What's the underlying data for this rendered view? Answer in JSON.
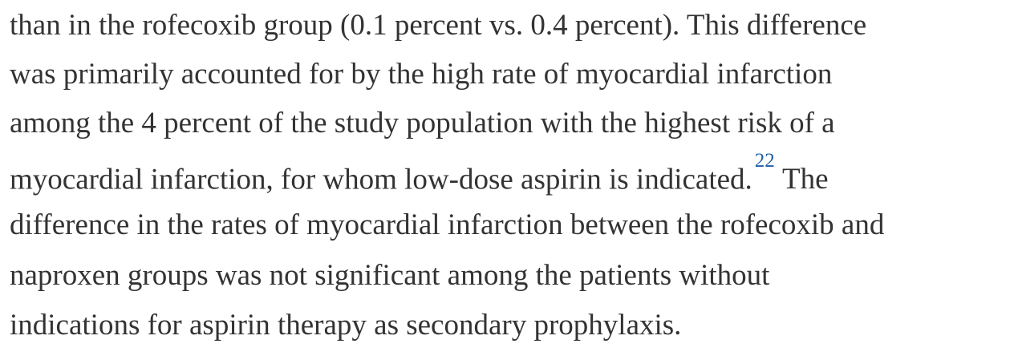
{
  "passage": {
    "line1": "than in the rofecoxib group (0.1 percent vs. 0.4 percent). This difference",
    "line2": "was primarily accounted for by the high rate of myocardial infarction",
    "line3": "among the 4 percent of the study population with the highest risk of a",
    "line4_text": "myocardial infarction, for whom low-dose aspirin is indicated.",
    "line4_ref": "22",
    "line4_highlight": "The",
    "line5_highlight": "difference",
    "line5_text": " in the rates of myocardial infarction between the rofecoxib and",
    "line6_text": "naproxen groups ",
    "line6_highlight": "was not significant among the patients without",
    "line7_highlight": "indications for aspirin therapy",
    "line7_text": " as secondary prophylaxis."
  },
  "colors": {
    "text": "#333333",
    "highlight": "#ffe600",
    "reference_link": "#1f5fa8"
  }
}
